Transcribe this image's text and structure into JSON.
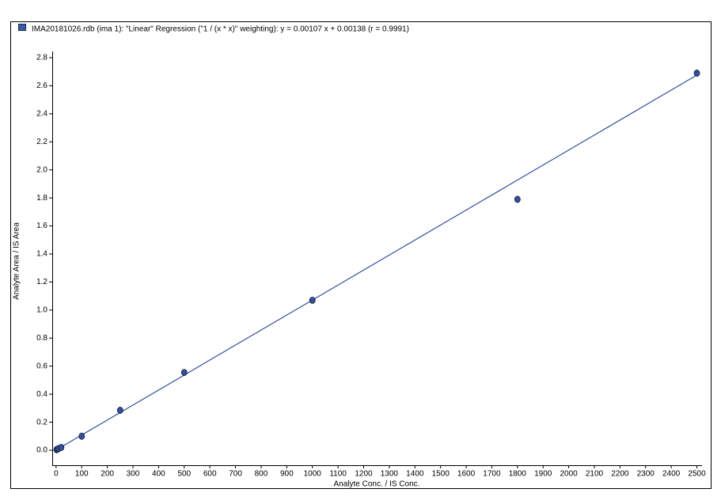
{
  "chart_data": {
    "type": "scatter",
    "xlabel": "Analyte Conc. / IS Conc.",
    "ylabel": "Analyte Area / IS Area",
    "series": [
      {
        "name": "IMA20181026.rdb (ima 1): \"Linear\" Regression (\"1  / (x * x)\" weighting): y = 0.00107 x + 0.00138 (r = 0.9991)",
        "color": "#34509a",
        "x": [
          2,
          5,
          10,
          20,
          100,
          250,
          500,
          1000,
          1800,
          2500
        ],
        "values": [
          0.004,
          0.007,
          0.012,
          0.02,
          0.1,
          0.285,
          0.555,
          1.07,
          1.79,
          2.69
        ]
      }
    ],
    "fit": {
      "slope": 0.00107,
      "intercept": 0.00138,
      "color": "#34509a"
    },
    "xlim": [
      -15,
      2520
    ],
    "ylim": [
      -0.107,
      2.845
    ],
    "xticks": [
      0,
      100,
      200,
      300,
      400,
      500,
      600,
      700,
      800,
      900,
      1000,
      1100,
      1200,
      1300,
      1400,
      1500,
      1600,
      1700,
      1800,
      1900,
      2000,
      2100,
      2200,
      2300,
      2400,
      2500
    ],
    "yticks": [
      {
        "value": 0,
        "label": "0.0"
      },
      0.2,
      0.4,
      0.6,
      0.8,
      {
        "value": 1,
        "label": "1.0"
      },
      1.2,
      1.4,
      1.6,
      1.8,
      {
        "value": 2,
        "label": "2.0"
      },
      2.2,
      2.4,
      2.6,
      2.8
    ]
  }
}
